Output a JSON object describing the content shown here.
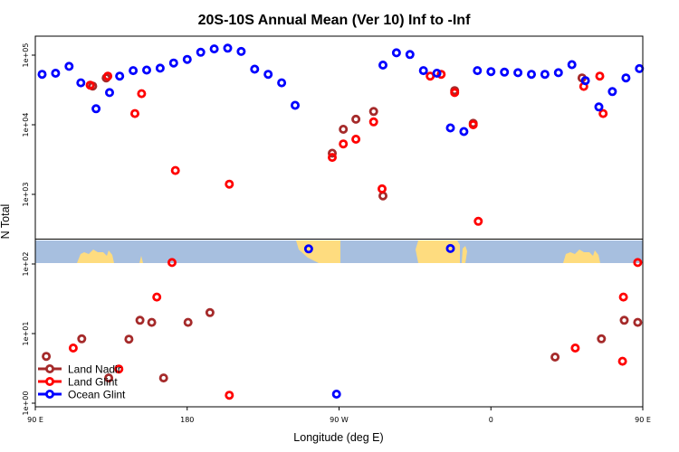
{
  "chart_data": {
    "type": "scatter",
    "title": "20S-10S Annual Mean (Ver 10)   Inf to -Inf",
    "xlabel": "Longitude (deg E)",
    "ylabel": "N Total",
    "y_scale": "log",
    "xlim": [
      90,
      450
    ],
    "ylim": [
      1,
      150000
    ],
    "x_ticks": [
      {
        "value": 90,
        "label": "90 E"
      },
      {
        "value": 180,
        "label": "180"
      },
      {
        "value": 270,
        "label": "90 W"
      },
      {
        "value": 360,
        "label": "0"
      },
      {
        "value": 450,
        "label": "90 E"
      },
      {
        "value": 540,
        "label": "180"
      }
    ],
    "y_ticks": [
      {
        "value": 1,
        "label": "1e+00"
      },
      {
        "value": 10,
        "label": "1e+01"
      },
      {
        "value": 100,
        "label": "1e+02"
      },
      {
        "value": 1000,
        "label": "1e+03"
      },
      {
        "value": 10000,
        "label": "1e+04"
      },
      {
        "value": 100000,
        "label": "1e+05"
      }
    ],
    "grid": false,
    "legend_position": "bottom-left",
    "inset": "land-ocean map strip",
    "series": [
      {
        "name": "Land Nadir",
        "color": "#a52a2a",
        "points": [
          [
            96.5,
            4.7
          ],
          [
            117.5,
            8.4
          ],
          [
            124,
            36000
          ],
          [
            132,
            47000
          ],
          [
            133.5,
            2.3
          ],
          [
            145.5,
            8.3
          ],
          [
            152,
            15.5
          ],
          [
            159,
            14.5
          ],
          [
            166,
            2.3
          ],
          [
            180.5,
            14.5
          ],
          [
            193.5,
            20
          ],
          [
            266,
            3900
          ],
          [
            272.5,
            8600
          ],
          [
            280,
            12000
          ],
          [
            290.5,
            15500
          ],
          [
            296,
            950
          ],
          [
            338.5,
            31000
          ],
          [
            349.5,
            10500
          ],
          [
            398,
            4.6
          ],
          [
            414,
            47000
          ],
          [
            425.5,
            8.4
          ],
          [
            439,
            15.5
          ],
          [
            447,
            14.5
          ]
        ]
      },
      {
        "name": "Land Glint",
        "color": "#ff0000",
        "points": [
          [
            112.5,
            6.2
          ],
          [
            122.5,
            37000
          ],
          [
            133,
            50000
          ],
          [
            139.5,
            3.1
          ],
          [
            149,
            14500
          ],
          [
            153,
            28000
          ],
          [
            162,
            33.5
          ],
          [
            171,
            105
          ],
          [
            173,
            2200
          ],
          [
            205,
            1.3
          ],
          [
            205,
            1400
          ],
          [
            266,
            3400
          ],
          [
            272.5,
            5300
          ],
          [
            280,
            6200
          ],
          [
            290.5,
            11000
          ],
          [
            295.5,
            1200
          ],
          [
            324,
            50000
          ],
          [
            330.5,
            53000
          ],
          [
            338.5,
            29000
          ],
          [
            349.5,
            10000
          ],
          [
            352.5,
            410
          ],
          [
            410,
            6.2
          ],
          [
            415,
            35500
          ],
          [
            424.5,
            50000
          ],
          [
            426.5,
            14500
          ],
          [
            438,
            4
          ],
          [
            438.5,
            33.5
          ],
          [
            447,
            105
          ]
        ]
      },
      {
        "name": "Ocean Glint",
        "color": "#0000ff",
        "points": [
          [
            94,
            53000
          ],
          [
            102,
            55000
          ],
          [
            110,
            69000
          ],
          [
            117,
            40000
          ],
          [
            126,
            17000
          ],
          [
            134,
            29000
          ],
          [
            140,
            50000
          ],
          [
            148,
            60000
          ],
          [
            156,
            61000
          ],
          [
            164,
            65000
          ],
          [
            172,
            77000
          ],
          [
            180,
            87000
          ],
          [
            188,
            110000
          ],
          [
            196,
            123000
          ],
          [
            204,
            126000
          ],
          [
            212,
            113000
          ],
          [
            220,
            63000
          ],
          [
            228,
            53000
          ],
          [
            236,
            40000
          ],
          [
            244,
            19000
          ],
          [
            252,
            165
          ],
          [
            268.5,
            1.35
          ],
          [
            296,
            72000
          ],
          [
            304,
            108000
          ],
          [
            312,
            102000
          ],
          [
            320,
            60000
          ],
          [
            328,
            55000
          ],
          [
            336,
            167
          ],
          [
            336,
            9000
          ],
          [
            344,
            8000
          ],
          [
            352,
            60000
          ],
          [
            360,
            58000
          ],
          [
            368,
            57000
          ],
          [
            376,
            56000
          ],
          [
            384,
            53000
          ],
          [
            392,
            53000
          ],
          [
            400,
            56000
          ],
          [
            408,
            73000
          ],
          [
            416,
            43000
          ],
          [
            424,
            18000
          ],
          [
            432,
            30000
          ],
          [
            440,
            47000
          ],
          [
            448,
            64000
          ],
          [
            456,
            64000
          ]
        ]
      }
    ]
  }
}
